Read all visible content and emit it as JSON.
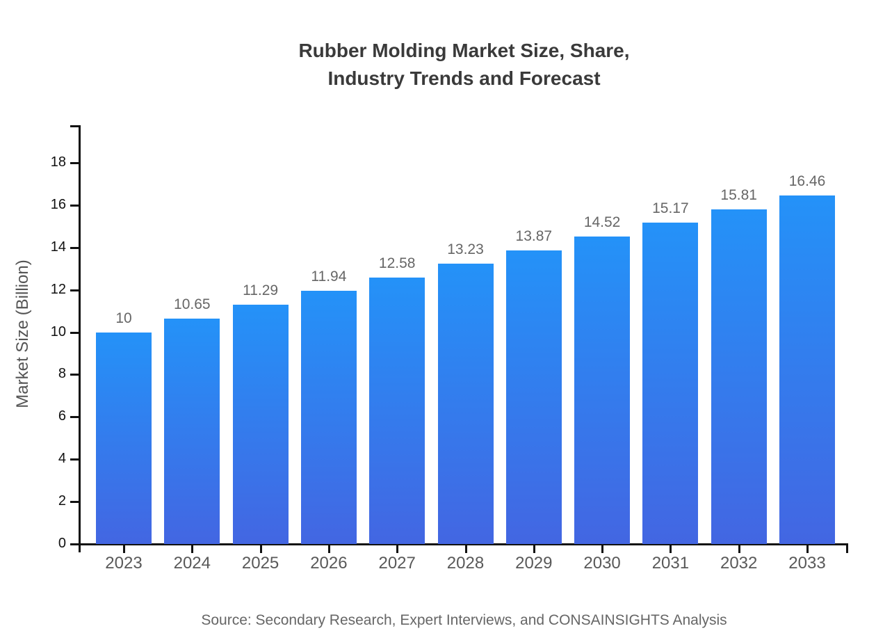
{
  "chart_data": {
    "type": "bar",
    "title": "Rubber Molding Market Size, Share, Industry Trends and Forecast",
    "title_lines": [
      "Rubber Molding Market Size, Share,",
      "Industry Trends and Forecast"
    ],
    "categories": [
      "2023",
      "2024",
      "2025",
      "2026",
      "2027",
      "2028",
      "2029",
      "2030",
      "2031",
      "2032",
      "2033"
    ],
    "values": [
      10,
      10.65,
      11.29,
      11.94,
      12.58,
      13.23,
      13.87,
      14.52,
      15.17,
      15.81,
      16.46
    ],
    "value_labels": [
      "10",
      "10.65",
      "11.29",
      "11.94",
      "12.58",
      "13.23",
      "13.87",
      "14.52",
      "15.17",
      "15.81",
      "16.46"
    ],
    "xlabel": "",
    "ylabel": "Market Size (Billion)",
    "ylim": [
      0,
      19.8
    ],
    "yticks": [
      0,
      2,
      4,
      6,
      8,
      10,
      12,
      14,
      16,
      18
    ],
    "grid": false,
    "legend": null,
    "source": "Source: Secondary Research, Expert Interviews, and CONSAINSIGHTS Analysis",
    "colors": {
      "bar_gradient_top": "#2492f8",
      "bar_gradient_bottom": "#4366e2",
      "axis": "#111111",
      "title_text": "#3a3a3a",
      "tick_label": "#111111",
      "category_label": "#595959",
      "value_label": "#666666",
      "source_text": "#666666",
      "background": "#ffffff"
    }
  }
}
